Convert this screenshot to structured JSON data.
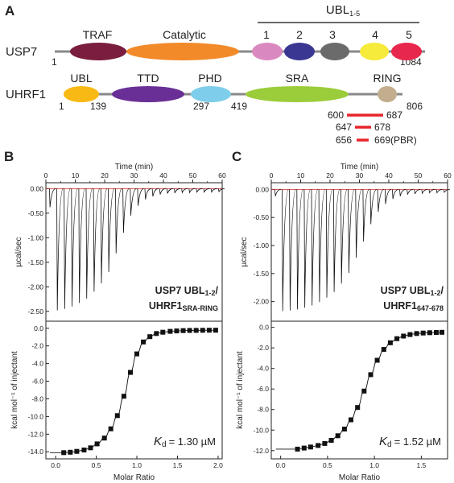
{
  "panel_a": {
    "letter": "A",
    "usp7": {
      "name": "USP7",
      "start": "1",
      "end": "1084",
      "domains": [
        {
          "label": "TRAF",
          "color": "#7a1d3f"
        },
        {
          "label": "Catalytic",
          "color": "#f28a2a"
        }
      ],
      "ubl_group": {
        "label": "UBL",
        "label_sub": "1-5",
        "items": [
          {
            "label": "1",
            "color": "#d989c0"
          },
          {
            "label": "2",
            "color": "#3a3793"
          },
          {
            "label": "3",
            "color": "#6b6b6b"
          },
          {
            "label": "4",
            "color": "#f6ea3a"
          },
          {
            "label": "5",
            "color": "#e8274d"
          }
        ]
      }
    },
    "uhrf1": {
      "name": "UHRF1",
      "start": "1",
      "end": "806",
      "domains": [
        {
          "label": "UBL",
          "color": "#f9b914"
        },
        {
          "label": "TTD",
          "color": "#6a2f96"
        },
        {
          "label": "PHD",
          "color": "#7ecdea"
        },
        {
          "label": "SRA",
          "color": "#9bcc3a"
        },
        {
          "label": "RING",
          "color": "#c2ae8e"
        }
      ],
      "boundaries": [
        "139",
        "297",
        "419"
      ]
    },
    "fragments": [
      {
        "start": "600",
        "end": "687"
      },
      {
        "start": "647",
        "end": "678"
      },
      {
        "start": "656",
        "end": "669",
        "note": "(PBR)"
      }
    ]
  },
  "itc_panels": [
    {
      "letter": "B",
      "time_axis": {
        "label": "Time (min)",
        "ticks": [
          "0",
          "10",
          "20",
          "30",
          "40",
          "50",
          "60"
        ],
        "min": 0,
        "max": 60
      },
      "raw_axis": {
        "label": "µcal/sec",
        "ticks": [
          "0.00",
          "-0.50",
          "-1.00",
          "-1.50",
          "-2.00",
          "-2.50"
        ],
        "min": -2.7,
        "max": 0.12
      },
      "raw_peaks": [
        -0.38,
        -2.48,
        -2.45,
        -2.4,
        -2.33,
        -2.24,
        -2.1,
        -1.93,
        -1.7,
        -1.32,
        -0.9,
        -0.55,
        -0.35,
        -0.22,
        -0.16,
        -0.12,
        -0.1,
        -0.09,
        -0.08,
        -0.08,
        -0.07,
        -0.07,
        -0.07,
        -0.06
      ],
      "legend_line1": "USP7 UBL",
      "legend_sub1": "1-2",
      "legend_line1_end": "/",
      "legend_line2": "UHRF1",
      "legend_sub2": "SRA-RING",
      "kd_symbol": "K",
      "kd_sub": "d",
      "kd_value": "= 1.30 µM",
      "chart_data": {
        "type": "scatter",
        "xlabel": "Molar Ratio",
        "ylabel": "kcal mol⁻¹ of injectant",
        "xlim": [
          -0.12,
          2.05
        ],
        "ylim": [
          -14.8,
          0.8
        ],
        "xticks": [
          "0.0",
          "0.5",
          "1.0",
          "1.5",
          "2.0"
        ],
        "yticks": [
          "0.0",
          "-2.0",
          "-4.0",
          "-6.0",
          "-8.0",
          "-10.0",
          "-12.0",
          "-14.0"
        ],
        "x": [
          0.1,
          0.18,
          0.26,
          0.35,
          0.43,
          0.51,
          0.6,
          0.68,
          0.76,
          0.84,
          0.92,
          1.0,
          1.08,
          1.16,
          1.24,
          1.32,
          1.41,
          1.49,
          1.57,
          1.65,
          1.73,
          1.81,
          1.89,
          1.97
        ],
        "y": [
          -14.1,
          -14.05,
          -13.95,
          -13.8,
          -13.55,
          -13.1,
          -12.45,
          -11.4,
          -9.9,
          -7.7,
          -5.0,
          -2.9,
          -1.55,
          -0.95,
          -0.6,
          -0.45,
          -0.35,
          -0.3,
          -0.27,
          -0.25,
          -0.24,
          -0.23,
          -0.22,
          -0.22
        ]
      }
    },
    {
      "letter": "C",
      "time_axis": {
        "label": "Time (min)",
        "ticks": [
          "0",
          "10",
          "20",
          "30",
          "40",
          "50",
          "60"
        ],
        "min": 0,
        "max": 60
      },
      "raw_axis": {
        "label": "µcal/sec",
        "ticks": [
          "0.00",
          "-0.50",
          "-1.00",
          "-1.50",
          "-2.00"
        ],
        "min": -2.35,
        "max": 0.12
      },
      "raw_peaks": [
        -0.12,
        -2.17,
        -2.16,
        -2.14,
        -2.11,
        -2.07,
        -2.01,
        -1.93,
        -1.83,
        -1.68,
        -1.49,
        -1.22,
        -0.93,
        -0.62,
        -0.4,
        -0.26,
        -0.17,
        -0.12,
        -0.09,
        -0.08,
        -0.07,
        -0.06,
        -0.06,
        -0.05
      ],
      "legend_line1": "USP7 UBL",
      "legend_sub1": "1-2",
      "legend_line1_end": "/",
      "legend_line2": "UHRF1",
      "legend_sub2": "647-678",
      "kd_symbol": "K",
      "kd_sub": "d",
      "kd_value": "= 1.52 µM",
      "chart_data": {
        "type": "scatter",
        "xlabel": "Molar Ratio",
        "ylabel": "kcal mol⁻¹ of injectant",
        "xlim": [
          -0.1,
          1.78
        ],
        "ylim": [
          -12.8,
          0.6
        ],
        "xticks": [
          "0.0",
          "0.5",
          "1.0",
          "1.5"
        ],
        "yticks": [
          "0.0",
          "-2.0",
          "-4.0",
          "-6.0",
          "-8.0",
          "-10.0",
          "-12.0"
        ],
        "x": [
          0.18,
          0.25,
          0.32,
          0.4,
          0.47,
          0.54,
          0.61,
          0.68,
          0.75,
          0.82,
          0.89,
          0.96,
          1.03,
          1.1,
          1.17,
          1.24,
          1.31,
          1.38,
          1.45,
          1.52,
          1.59,
          1.66,
          1.72
        ],
        "y": [
          -11.85,
          -11.75,
          -11.65,
          -11.5,
          -11.3,
          -11.0,
          -10.55,
          -9.9,
          -9.0,
          -7.8,
          -6.2,
          -4.6,
          -3.2,
          -2.15,
          -1.5,
          -1.1,
          -0.85,
          -0.7,
          -0.6,
          -0.55,
          -0.52,
          -0.5,
          -0.48
        ]
      }
    }
  ]
}
